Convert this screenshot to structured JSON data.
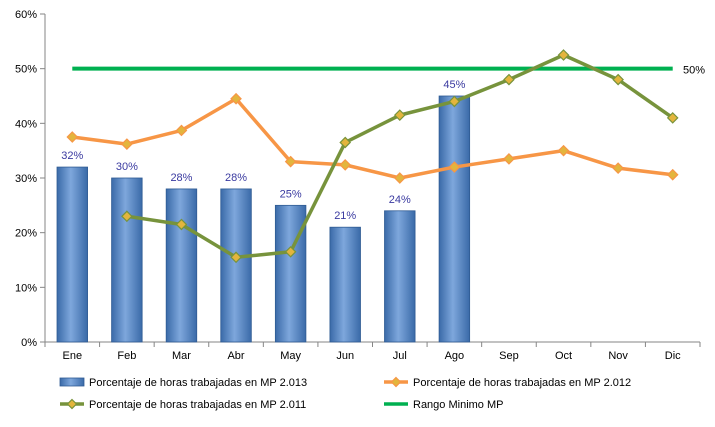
{
  "chart_data": {
    "type": "bar",
    "categories": [
      "Ene",
      "Feb",
      "Mar",
      "Abr",
      "May",
      "Jun",
      "Jul",
      "Ago",
      "Sep",
      "Oct",
      "Nov",
      "Dic"
    ],
    "ylim": [
      0,
      60
    ],
    "yticks": [
      "0%",
      "10%",
      "20%",
      "30%",
      "40%",
      "50%",
      "60%"
    ],
    "ytick_values": [
      0,
      10,
      20,
      30,
      40,
      50,
      60
    ],
    "grid": false,
    "legend_position": "bottom",
    "series": [
      {
        "name": "Porcentaje de horas trabajadas en MP 2.013",
        "kind": "bar",
        "color": "#4f81bd",
        "values": [
          32,
          30,
          28,
          28,
          25,
          21,
          24,
          45,
          null,
          null,
          null,
          null
        ],
        "labels": [
          "32%",
          "30%",
          "28%",
          "28%",
          "25%",
          "21%",
          "24%",
          "45%",
          "",
          "",
          "",
          ""
        ]
      },
      {
        "name": "Porcentaje de horas trabajadas en MP 2.012",
        "kind": "line",
        "color": "#f79646",
        "values": [
          37.5,
          36.2,
          38.7,
          44.5,
          33,
          32.4,
          30,
          32,
          33.5,
          35,
          31.8,
          30.6
        ]
      },
      {
        "name": "Porcentaje de horas trabajadas en MP 2.011",
        "kind": "line",
        "color": "#77933c",
        "values": [
          null,
          23,
          21.5,
          15.5,
          16.5,
          36.5,
          41.5,
          44,
          48,
          52.5,
          48,
          41
        ]
      },
      {
        "name": "Rango Minimo  MP",
        "kind": "reference",
        "color": "#00b050",
        "value": 50,
        "label": "50%"
      }
    ]
  }
}
